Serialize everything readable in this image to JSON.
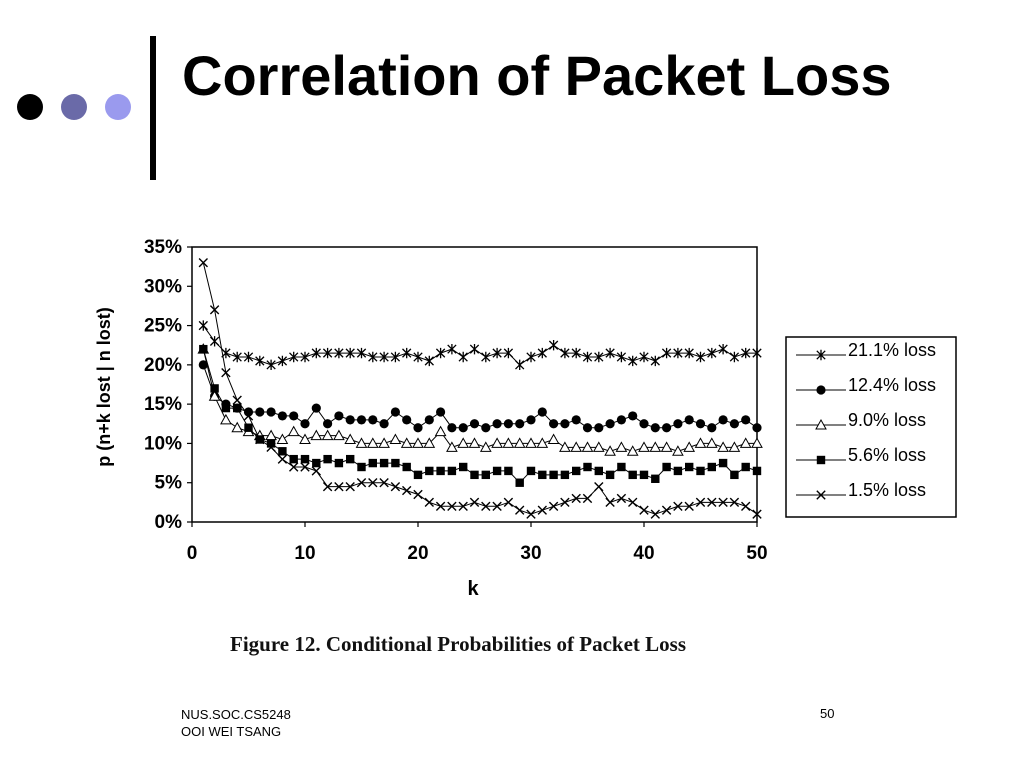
{
  "slide": {
    "title": "Correlation of Packet Loss",
    "footer_line1": "NUS.SOC.CS5248",
    "footer_line2": "OOI WEI TSANG",
    "page_number": "50",
    "colors": {
      "dot1": "#000000",
      "dot2": "#6a6aa8",
      "dot3": "#9a9aee"
    }
  },
  "figure_caption": "Figure 12. Conditional Probabilities of Packet Loss",
  "chart_data": {
    "type": "line",
    "xlabel": "k",
    "ylabel": "p (n+k lost | n lost)",
    "xlim": [
      0,
      50
    ],
    "ylim": [
      0,
      35
    ],
    "xticks": [
      0,
      10,
      20,
      30,
      40,
      50
    ],
    "yticks": [
      "0%",
      "5%",
      "10%",
      "15%",
      "20%",
      "25%",
      "30%",
      "35%"
    ],
    "grid": false,
    "legend_position": "right",
    "x": [
      1,
      2,
      3,
      4,
      5,
      6,
      7,
      8,
      9,
      10,
      11,
      12,
      13,
      14,
      15,
      16,
      17,
      18,
      19,
      20,
      21,
      22,
      23,
      24,
      25,
      26,
      27,
      28,
      29,
      30,
      31,
      32,
      33,
      34,
      35,
      36,
      37,
      38,
      39,
      40,
      41,
      42,
      43,
      44,
      45,
      46,
      47,
      48,
      49,
      50
    ],
    "series": [
      {
        "name": "21.1% loss",
        "marker": "asterisk",
        "values": [
          25.0,
          23.0,
          21.5,
          21.0,
          21.0,
          20.5,
          20.0,
          20.5,
          21.0,
          21.0,
          21.5,
          21.5,
          21.5,
          21.5,
          21.5,
          21.0,
          21.0,
          21.0,
          21.5,
          21.0,
          20.5,
          21.5,
          22.0,
          21.0,
          22.0,
          21.0,
          21.5,
          21.5,
          20.0,
          21.0,
          21.5,
          22.5,
          21.5,
          21.5,
          21.0,
          21.0,
          21.5,
          21.0,
          20.5,
          21.0,
          20.5,
          21.5,
          21.5,
          21.5,
          21.0,
          21.5,
          22.0,
          21.0,
          21.5,
          21.5
        ]
      },
      {
        "name": "12.4% loss",
        "marker": "circle",
        "values": [
          20.0,
          16.0,
          15.0,
          14.5,
          14.0,
          14.0,
          14.0,
          13.5,
          13.5,
          12.5,
          14.5,
          12.5,
          13.5,
          13.0,
          13.0,
          13.0,
          12.5,
          14.0,
          13.0,
          12.0,
          13.0,
          14.0,
          12.0,
          12.0,
          12.5,
          12.0,
          12.5,
          12.5,
          12.5,
          13.0,
          14.0,
          12.5,
          12.5,
          13.0,
          12.0,
          12.0,
          12.5,
          13.0,
          13.5,
          12.5,
          12.0,
          12.0,
          12.5,
          13.0,
          12.5,
          12.0,
          13.0,
          12.5,
          13.0,
          12.0
        ]
      },
      {
        "name": "9.0% loss",
        "marker": "triangle",
        "values": [
          22.0,
          16.0,
          13.0,
          12.0,
          11.5,
          11.0,
          11.0,
          10.5,
          11.5,
          10.5,
          11.0,
          11.0,
          11.0,
          10.5,
          10.0,
          10.0,
          10.0,
          10.5,
          10.0,
          10.0,
          10.0,
          11.5,
          9.5,
          10.0,
          10.0,
          9.5,
          10.0,
          10.0,
          10.0,
          10.0,
          10.0,
          10.5,
          9.5,
          9.5,
          9.5,
          9.5,
          9.0,
          9.5,
          9.0,
          9.5,
          9.5,
          9.5,
          9.0,
          9.5,
          10.0,
          10.0,
          9.5,
          9.5,
          10.0,
          10.0
        ]
      },
      {
        "name": "5.6% loss",
        "marker": "square",
        "values": [
          22.0,
          17.0,
          14.5,
          14.5,
          12.0,
          10.5,
          10.0,
          9.0,
          8.0,
          8.0,
          7.5,
          8.0,
          7.5,
          8.0,
          7.0,
          7.5,
          7.5,
          7.5,
          7.0,
          6.0,
          6.5,
          6.5,
          6.5,
          7.0,
          6.0,
          6.0,
          6.5,
          6.5,
          5.0,
          6.5,
          6.0,
          6.0,
          6.0,
          6.5,
          7.0,
          6.5,
          6.0,
          7.0,
          6.0,
          6.0,
          5.5,
          7.0,
          6.5,
          7.0,
          6.5,
          7.0,
          7.5,
          6.0,
          7.0,
          6.5
        ]
      },
      {
        "name": "1.5% loss",
        "marker": "x",
        "values": [
          33.0,
          27.0,
          19.0,
          15.5,
          13.5,
          10.5,
          9.5,
          8.0,
          7.0,
          7.0,
          6.5,
          4.5,
          4.5,
          4.5,
          5.0,
          5.0,
          5.0,
          4.5,
          4.0,
          3.5,
          2.5,
          2.0,
          2.0,
          2.0,
          2.5,
          2.0,
          2.0,
          2.5,
          1.5,
          1.0,
          1.5,
          2.0,
          2.5,
          3.0,
          3.0,
          4.5,
          2.5,
          3.0,
          2.5,
          1.5,
          1.0,
          1.5,
          2.0,
          2.0,
          2.5,
          2.5,
          2.5,
          2.5,
          2.0,
          1.0
        ]
      }
    ]
  }
}
